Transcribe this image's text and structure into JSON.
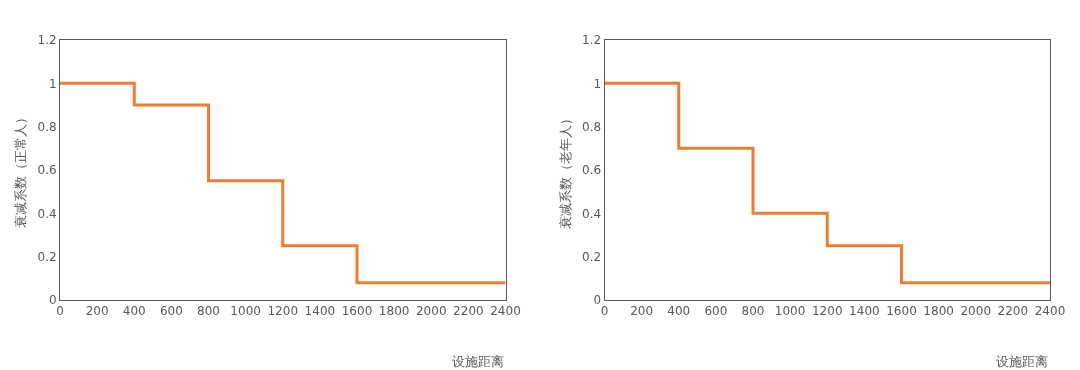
{
  "chart_data": [
    {
      "type": "step",
      "x": [
        0,
        400,
        800,
        1200,
        1600,
        2400
      ],
      "xlabel": "设施距离",
      "ylabel": "衰减系数（正常人）",
      "series": [
        {
          "color": "#ed7d31",
          "values": [
            1,
            0.9,
            0.55,
            0.25,
            0.08,
            0.08
          ]
        }
      ],
      "xlim": [
        0,
        2400
      ],
      "xticks": [
        0,
        200,
        400,
        600,
        800,
        1000,
        1200,
        1400,
        1600,
        1800,
        2000,
        2200,
        2400
      ],
      "ylim": [
        0,
        1.2
      ],
      "yticks": [
        0,
        0.2,
        0.4,
        0.6,
        0.8,
        1,
        1.2
      ],
      "grid": false,
      "marker": "none",
      "line_style": "solid"
    },
    {
      "type": "step",
      "x": [
        0,
        400,
        800,
        1200,
        1600,
        2400
      ],
      "xlabel": "设施距离",
      "ylabel": "衰减系数（老年人）",
      "series": [
        {
          "color": "#ed7d31",
          "values": [
            1,
            0.7,
            0.4,
            0.25,
            0.08,
            0.08
          ]
        }
      ],
      "xlim": [
        0,
        2400
      ],
      "xticks": [
        0,
        200,
        400,
        600,
        800,
        1000,
        1200,
        1400,
        1600,
        1800,
        2000,
        2200,
        2400
      ],
      "ylim": [
        0,
        1.2
      ],
      "yticks": [
        0,
        0.2,
        0.4,
        0.6,
        0.8,
        1,
        1.2
      ],
      "grid": false,
      "marker": "none",
      "line_style": "solid"
    }
  ]
}
